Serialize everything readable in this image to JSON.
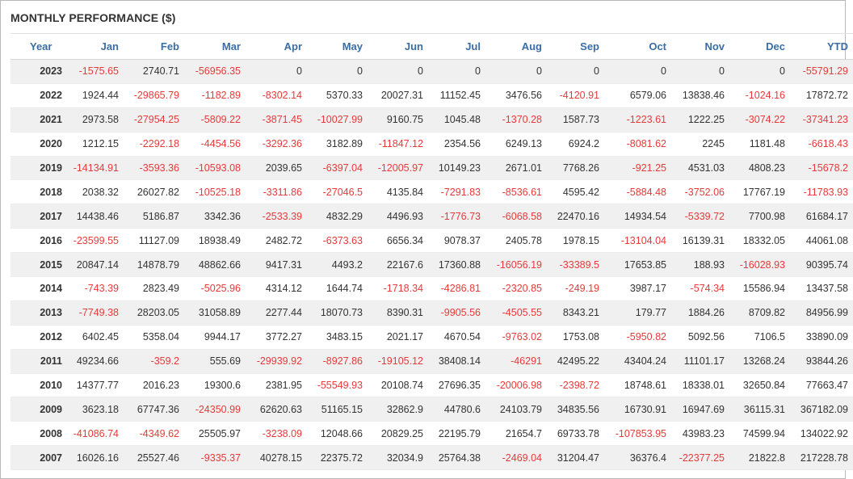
{
  "title": "MONTHLY PERFORMANCE ($)",
  "colors": {
    "header": "#3a6ea5",
    "negative": "#e8393a",
    "positive": "#333333"
  },
  "columns": [
    "Year",
    "Jan",
    "Feb",
    "Mar",
    "Apr",
    "May",
    "Jun",
    "Jul",
    "Aug",
    "Sep",
    "Oct",
    "Nov",
    "Dec",
    "YTD"
  ],
  "rows": [
    [
      "2023",
      "-1575.65",
      "2740.71",
      "-56956.35",
      "0",
      "0",
      "0",
      "0",
      "0",
      "0",
      "0",
      "0",
      "0",
      "-55791.29"
    ],
    [
      "2022",
      "1924.44",
      "-29865.79",
      "-1182.89",
      "-8302.14",
      "5370.33",
      "20027.31",
      "11152.45",
      "3476.56",
      "-4120.91",
      "6579.06",
      "13838.46",
      "-1024.16",
      "17872.72"
    ],
    [
      "2021",
      "2973.58",
      "-27954.25",
      "-5809.22",
      "-3871.45",
      "-10027.99",
      "9160.75",
      "1045.48",
      "-1370.28",
      "1587.73",
      "-1223.61",
      "1222.25",
      "-3074.22",
      "-37341.23"
    ],
    [
      "2020",
      "1212.15",
      "-2292.18",
      "-4454.56",
      "-3292.36",
      "3182.89",
      "-11847.12",
      "2354.56",
      "6249.13",
      "6924.2",
      "-8081.62",
      "2245",
      "1181.48",
      "-6618.43"
    ],
    [
      "2019",
      "-14134.91",
      "-3593.36",
      "-10593.08",
      "2039.65",
      "-6397.04",
      "-12005.97",
      "10149.23",
      "2671.01",
      "7768.26",
      "-921.25",
      "4531.03",
      "4808.23",
      "-15678.2"
    ],
    [
      "2018",
      "2038.32",
      "26027.82",
      "-10525.18",
      "-3311.86",
      "-27046.5",
      "4135.84",
      "-7291.83",
      "-8536.61",
      "4595.42",
      "-5884.48",
      "-3752.06",
      "17767.19",
      "-11783.93"
    ],
    [
      "2017",
      "14438.46",
      "5186.87",
      "3342.36",
      "-2533.39",
      "4832.29",
      "4496.93",
      "-1776.73",
      "-6068.58",
      "22470.16",
      "14934.54",
      "-5339.72",
      "7700.98",
      "61684.17"
    ],
    [
      "2016",
      "-23599.55",
      "11127.09",
      "18938.49",
      "2482.72",
      "-6373.63",
      "6656.34",
      "9078.37",
      "2405.78",
      "1978.15",
      "-13104.04",
      "16139.31",
      "18332.05",
      "44061.08"
    ],
    [
      "2015",
      "20847.14",
      "14878.79",
      "48862.66",
      "9417.31",
      "4493.2",
      "22167.6",
      "17360.88",
      "-16056.19",
      "-33389.5",
      "17653.85",
      "188.93",
      "-16028.93",
      "90395.74"
    ],
    [
      "2014",
      "-743.39",
      "2823.49",
      "-5025.96",
      "4314.12",
      "1644.74",
      "-1718.34",
      "-4286.81",
      "-2320.85",
      "-249.19",
      "3987.17",
      "-574.34",
      "15586.94",
      "13437.58"
    ],
    [
      "2013",
      "-7749.38",
      "28203.05",
      "31058.89",
      "2277.44",
      "18070.73",
      "8390.31",
      "-9905.56",
      "-4505.55",
      "8343.21",
      "179.77",
      "1884.26",
      "8709.82",
      "84956.99"
    ],
    [
      "2012",
      "6402.45",
      "5358.04",
      "9944.17",
      "3772.27",
      "3483.15",
      "2021.17",
      "4670.54",
      "-9763.02",
      "1753.08",
      "-5950.82",
      "5092.56",
      "7106.5",
      "33890.09"
    ],
    [
      "2011",
      "49234.66",
      "-359.2",
      "555.69",
      "-29939.92",
      "-8927.86",
      "-19105.12",
      "38408.14",
      "-46291",
      "42495.22",
      "43404.24",
      "11101.17",
      "13268.24",
      "93844.26"
    ],
    [
      "2010",
      "14377.77",
      "2016.23",
      "19300.6",
      "2381.95",
      "-55549.93",
      "20108.74",
      "27696.35",
      "-20006.98",
      "-2398.72",
      "18748.61",
      "18338.01",
      "32650.84",
      "77663.47"
    ],
    [
      "2009",
      "3623.18",
      "67747.36",
      "-24350.99",
      "62620.63",
      "51165.15",
      "32862.9",
      "44780.6",
      "24103.79",
      "34835.56",
      "16730.91",
      "16947.69",
      "36115.31",
      "367182.09"
    ],
    [
      "2008",
      "-41086.74",
      "-4349.62",
      "25505.97",
      "-3238.09",
      "12048.66",
      "20829.25",
      "22195.79",
      "21654.7",
      "69733.78",
      "-107853.95",
      "43983.23",
      "74599.94",
      "134022.92"
    ],
    [
      "2007",
      "16026.16",
      "25527.46",
      "-9335.37",
      "40278.15",
      "22375.72",
      "32034.9",
      "25764.38",
      "-2469.04",
      "31204.47",
      "36376.4",
      "-22377.25",
      "21822.8",
      "217228.78"
    ]
  ]
}
